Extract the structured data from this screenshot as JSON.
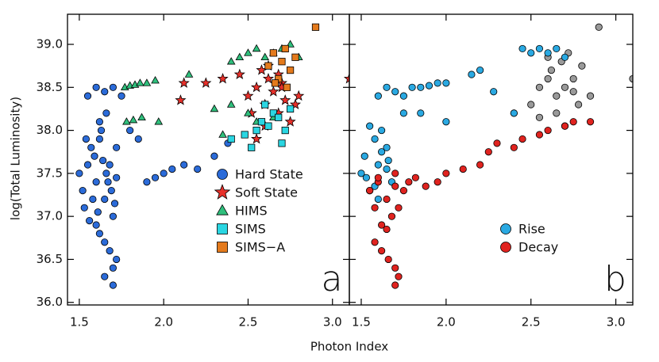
{
  "chart_data": [
    {
      "type": "scatter",
      "panel_label": "a",
      "xlabel": "Photon Index",
      "ylabel": "log(Total Luminosity)",
      "xlim": [
        1.43,
        3.1
      ],
      "ylim": [
        35.97,
        39.35
      ],
      "xticks": [
        1.5,
        {
          "value": 2.0,
          "label": "2.0"
        },
        2.5,
        {
          "value": 3.0,
          "label": "3.0"
        }
      ],
      "yticks": [
        {
          "value": 36.0,
          "label": "36.0"
        },
        36.5,
        {
          "value": 37.0,
          "label": "37.0"
        },
        37.5,
        {
          "value": 38.0,
          "label": "38.0"
        },
        38.5,
        {
          "value": 39.0,
          "label": "39.0"
        }
      ],
      "ytick_labels": true,
      "legend": "lower right",
      "series": [
        {
          "name": "Hard State",
          "marker": "circle",
          "color": "#2b6bd9",
          "x": [
            1.5,
            1.52,
            1.55,
            1.57,
            1.6,
            1.62,
            1.65,
            1.68,
            1.7,
            1.53,
            1.56,
            1.59,
            1.63,
            1.66,
            1.69,
            1.72,
            1.54,
            1.58,
            1.61,
            1.64,
            1.67,
            1.71,
            1.55,
            1.6,
            1.65,
            1.7,
            1.75,
            1.8,
            1.85,
            1.9,
            1.95,
            2.0,
            2.05,
            2.12,
            2.2,
            2.3,
            2.38,
            1.62,
            1.65,
            1.68,
            1.72,
            1.7,
            1.6,
            1.65,
            1.7,
            1.66,
            1.62,
            1.72
          ],
          "y": [
            37.5,
            37.3,
            37.6,
            37.8,
            37.4,
            37.9,
            37.2,
            37.6,
            37.0,
            37.1,
            36.95,
            37.7,
            38.0,
            37.5,
            37.3,
            37.8,
            37.9,
            37.2,
            37.05,
            37.65,
            37.4,
            37.15,
            38.4,
            38.5,
            38.45,
            38.5,
            38.4,
            38.0,
            37.9,
            37.4,
            37.45,
            37.5,
            37.55,
            37.6,
            37.55,
            37.7,
            37.85,
            36.8,
            36.7,
            36.6,
            36.5,
            36.4,
            36.9,
            36.3,
            36.2,
            38.2,
            38.1,
            37.45
          ]
        },
        {
          "name": "Soft State",
          "marker": "star",
          "color": "#e8302a",
          "x": [
            2.1,
            2.12,
            2.25,
            2.35,
            2.45,
            2.5,
            2.55,
            2.58,
            2.6,
            2.62,
            2.65,
            2.68,
            2.7,
            2.72,
            2.75,
            2.78,
            2.8,
            2.55,
            2.62,
            2.68,
            2.52,
            3.1,
            2.6,
            2.7
          ],
          "y": [
            38.35,
            38.55,
            38.55,
            38.6,
            38.65,
            38.4,
            38.5,
            38.7,
            38.3,
            38.6,
            38.45,
            38.2,
            38.55,
            38.35,
            38.1,
            38.3,
            38.4,
            37.9,
            38.75,
            38.65,
            38.2,
            38.6,
            38.05,
            38.5
          ]
        },
        {
          "name": "HIMS",
          "marker": "triangle",
          "color": "#2fbf7c",
          "x": [
            1.77,
            1.8,
            1.83,
            1.86,
            1.9,
            1.95,
            1.78,
            1.82,
            1.87,
            1.97,
            2.15,
            2.4,
            2.45,
            2.5,
            2.55,
            2.6,
            2.65,
            2.7,
            2.75,
            2.8,
            2.3,
            2.4,
            2.5,
            2.55,
            2.65,
            2.35
          ],
          "y": [
            38.5,
            38.52,
            38.53,
            38.55,
            38.55,
            38.58,
            38.1,
            38.12,
            38.15,
            38.1,
            38.65,
            38.8,
            38.85,
            38.9,
            38.95,
            38.85,
            38.9,
            38.95,
            39.0,
            38.85,
            38.25,
            38.3,
            38.2,
            38.1,
            38.15,
            37.95
          ]
        },
        {
          "name": "SIMS",
          "marker": "square",
          "color": "#2ad6e2",
          "x": [
            2.4,
            2.48,
            2.55,
            2.58,
            2.62,
            2.65,
            2.68,
            2.7,
            2.75,
            2.52,
            2.6,
            2.72
          ],
          "y": [
            37.9,
            37.95,
            38.0,
            38.1,
            38.05,
            38.2,
            38.15,
            37.85,
            38.25,
            37.8,
            38.3,
            38.0
          ]
        },
        {
          "name": "SIMS−A",
          "marker": "square",
          "color": "#e47a1c",
          "x": [
            2.62,
            2.65,
            2.68,
            2.7,
            2.72,
            2.75,
            2.78,
            2.66,
            2.73,
            2.9
          ],
          "y": [
            38.75,
            38.9,
            38.6,
            38.8,
            38.95,
            38.7,
            38.85,
            38.55,
            38.5,
            39.2
          ]
        }
      ]
    },
    {
      "type": "scatter",
      "panel_label": "b",
      "xlim": [
        1.43,
        3.1
      ],
      "ylim": [
        35.97,
        39.35
      ],
      "xticks": [
        1.5,
        {
          "value": 2.0,
          "label": "2.0"
        },
        2.5,
        {
          "value": 3.0,
          "label": "3.0"
        }
      ],
      "yticks": [
        36.0,
        36.5,
        37.0,
        37.5,
        38.0,
        38.5,
        39.0
      ],
      "ytick_labels": false,
      "legend": "lower right",
      "series": [
        {
          "marker": "circle",
          "color": "#9a9a9a",
          "x": [
            2.4,
            2.5,
            2.55,
            2.6,
            2.62,
            2.65,
            2.68,
            2.7,
            2.72,
            2.75,
            2.78,
            2.8,
            2.55,
            2.65,
            2.7,
            2.6,
            2.75,
            2.85,
            2.9,
            3.1
          ],
          "y": [
            38.2,
            38.3,
            38.5,
            38.6,
            38.7,
            38.4,
            38.8,
            38.5,
            38.9,
            38.6,
            38.3,
            38.75,
            38.15,
            38.2,
            38.05,
            38.85,
            38.45,
            38.4,
            39.2,
            38.6
          ]
        },
        {
          "name": "Rise",
          "marker": "circle",
          "color": "#2aa9e2",
          "x": [
            1.5,
            1.52,
            1.55,
            1.58,
            1.6,
            1.62,
            1.65,
            1.68,
            1.55,
            1.6,
            1.65,
            1.58,
            1.62,
            1.53,
            1.66,
            1.6,
            1.65,
            1.7,
            1.75,
            1.8,
            1.85,
            1.9,
            1.95,
            2.0,
            2.15,
            2.2,
            2.45,
            2.5,
            2.55,
            2.6,
            2.65,
            2.7,
            1.75,
            1.85,
            2.0,
            2.28,
            2.4
          ],
          "y": [
            37.5,
            37.7,
            37.3,
            37.9,
            37.6,
            38.0,
            37.8,
            37.4,
            38.05,
            37.2,
            37.55,
            37.35,
            37.75,
            37.45,
            37.65,
            38.4,
            38.5,
            38.45,
            38.4,
            38.5,
            38.5,
            38.52,
            38.55,
            38.55,
            38.65,
            38.7,
            38.95,
            38.9,
            38.95,
            38.9,
            38.95,
            38.85,
            38.2,
            38.2,
            38.1,
            38.45,
            38.2
          ]
        },
        {
          "name": "Decay",
          "marker": "circle",
          "color": "#e0231f",
          "x": [
            1.55,
            1.58,
            1.6,
            1.62,
            1.65,
            1.68,
            1.7,
            1.72,
            1.75,
            1.6,
            1.65,
            1.7,
            1.78,
            1.82,
            1.88,
            1.95,
            2.0,
            2.1,
            2.2,
            2.25,
            2.3,
            2.4,
            2.45,
            2.55,
            2.6,
            2.7,
            2.75,
            2.85,
            1.58,
            1.62,
            1.66,
            1.7,
            1.72,
            1.7
          ],
          "y": [
            37.3,
            37.1,
            37.4,
            36.9,
            37.2,
            37.0,
            37.35,
            37.1,
            37.3,
            37.45,
            36.85,
            37.5,
            37.4,
            37.45,
            37.35,
            37.4,
            37.5,
            37.55,
            37.6,
            37.75,
            37.85,
            37.8,
            37.9,
            37.95,
            38.0,
            38.05,
            38.1,
            38.1,
            36.7,
            36.6,
            36.5,
            36.4,
            36.3,
            36.2
          ]
        }
      ]
    }
  ]
}
